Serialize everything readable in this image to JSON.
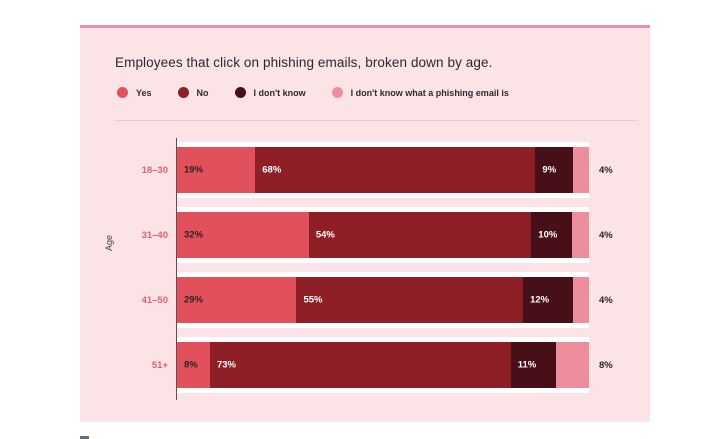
{
  "title": "Employees that click on phishing emails, broken down by age.",
  "chart_data": {
    "type": "bar",
    "stacked": true,
    "orientation": "horizontal",
    "title": "Employees that click on phishing emails, broken down by age.",
    "xlabel": "",
    "ylabel": "Age",
    "xlim": [
      0,
      100
    ],
    "value_suffix": "%",
    "grid": false,
    "legend_position": "top",
    "categories": [
      "18–30",
      "31–40",
      "41–50",
      "51+"
    ],
    "series": [
      {
        "name": "Yes",
        "color": "#E2505C",
        "label_color": "#2E2124",
        "label_placement": "inside",
        "values": [
          19,
          32,
          29,
          8
        ]
      },
      {
        "name": "No",
        "color": "#8E1F27",
        "label_color": "#FFFFFF",
        "label_placement": "inside",
        "values": [
          68,
          54,
          55,
          73
        ]
      },
      {
        "name": "I don't know",
        "color": "#471019",
        "label_color": "#FFFFFF",
        "label_placement": "inside",
        "values": [
          9,
          10,
          12,
          11
        ]
      },
      {
        "name": "I don't know what a phishing email is",
        "color": "#EE8D9B",
        "label_color": "#2E2124",
        "label_placement": "outside",
        "values": [
          4,
          4,
          4,
          8
        ]
      }
    ]
  },
  "colors": {
    "card_background": "#FBE3E6",
    "card_top_border": "#EC8FA6",
    "category_label": "#E2606F",
    "axis_line": "#5B4F52",
    "divider": "#F2C9CF",
    "bar_row_background": "#FFFFFF",
    "title_text": "#2D282A"
  }
}
